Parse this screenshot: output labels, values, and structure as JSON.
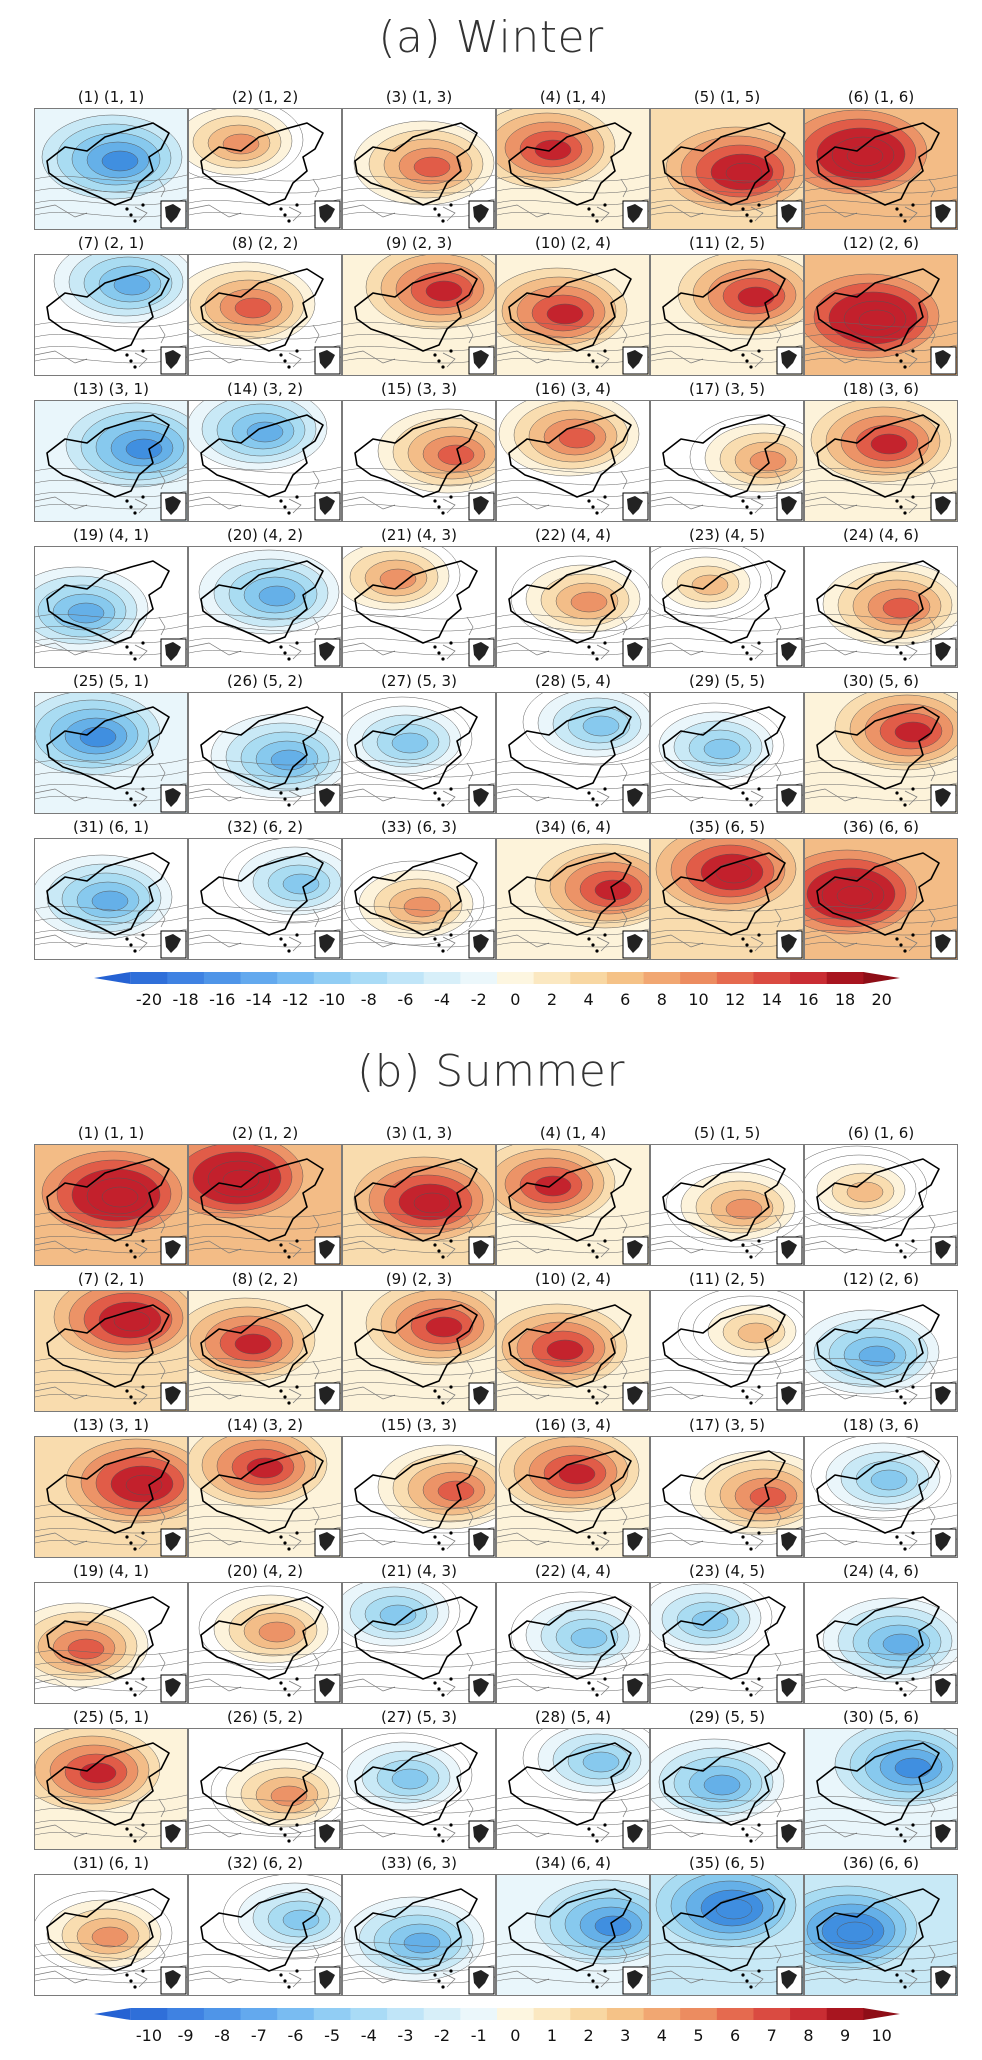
{
  "sections": [
    {
      "title": "(a) Winter",
      "panel_labels": [
        "(1) (1, 1)",
        "(2) (1, 2)",
        "(3) (1, 3)",
        "(4) (1, 4)",
        "(5) (1, 5)",
        "(6) (1, 6)",
        "(7) (2, 1)",
        "(8) (2, 2)",
        "(9) (2, 3)",
        "(10) (2, 4)",
        "(11) (2, 5)",
        "(12) (2, 6)",
        "(13) (3, 1)",
        "(14) (3, 2)",
        "(15) (3, 3)",
        "(16) (3, 4)",
        "(17) (3, 5)",
        "(18) (3, 6)",
        "(19) (4, 1)",
        "(20) (4, 2)",
        "(21) (4, 3)",
        "(22) (4, 4)",
        "(23) (4, 5)",
        "(24) (4, 6)",
        "(25) (5, 1)",
        "(26) (5, 2)",
        "(27) (5, 3)",
        "(28) (5, 4)",
        "(29) (5, 5)",
        "(30) (5, 6)",
        "(31) (6, 1)",
        "(32) (6, 2)",
        "(33) (6, 3)",
        "(34) (6, 4)",
        "(35) (6, 5)",
        "(36) (6, 6)"
      ],
      "colorbar_labels": [
        "-20",
        "-18",
        "-16",
        "-14",
        "-12",
        "-10",
        "-8",
        "-6",
        "-4",
        "-2",
        "0",
        "2",
        "4",
        "6",
        "8",
        "10",
        "12",
        "14",
        "16",
        "18",
        "20"
      ],
      "panel_tone": [
        -3,
        1,
        2,
        3,
        4,
        5,
        -2,
        2,
        3,
        3,
        3,
        5,
        -3,
        -2,
        2,
        2,
        1,
        3,
        -2,
        -2,
        1,
        1,
        0,
        2,
        -3,
        -2,
        -1,
        -1,
        -1,
        3,
        -2,
        -1,
        1,
        3,
        4,
        5
      ]
    },
    {
      "title": "(b) Summer",
      "panel_labels": [
        "(1) (1, 1)",
        "(2) (1, 2)",
        "(3) (1, 3)",
        "(4) (1, 4)",
        "(5) (1, 5)",
        "(6) (1, 6)",
        "(7) (2, 1)",
        "(8) (2, 2)",
        "(9) (2, 3)",
        "(10) (2, 4)",
        "(11) (2, 5)",
        "(12) (2, 6)",
        "(13) (3, 1)",
        "(14) (3, 2)",
        "(15) (3, 3)",
        "(16) (3, 4)",
        "(17) (3, 5)",
        "(18) (3, 6)",
        "(19) (4, 1)",
        "(20) (4, 2)",
        "(21) (4, 3)",
        "(22) (4, 4)",
        "(23) (4, 5)",
        "(24) (4, 6)",
        "(25) (5, 1)",
        "(26) (5, 2)",
        "(27) (5, 3)",
        "(28) (5, 4)",
        "(29) (5, 5)",
        "(30) (5, 6)",
        "(31) (6, 1)",
        "(32) (6, 2)",
        "(33) (6, 3)",
        "(34) (6, 4)",
        "(35) (6, 5)",
        "(36) (6, 6)"
      ],
      "colorbar_labels": [
        "-10",
        "-9",
        "-8",
        "-7",
        "-6",
        "-5",
        "-4",
        "-3",
        "-2",
        "-1",
        "0",
        "1",
        "2",
        "3",
        "4",
        "5",
        "6",
        "7",
        "8",
        "9",
        "10"
      ],
      "panel_tone": [
        5,
        5,
        4,
        3,
        1,
        0,
        4,
        3,
        3,
        3,
        0,
        -2,
        4,
        3,
        2,
        3,
        2,
        -1,
        2,
        1,
        -1,
        -1,
        -1,
        -2,
        3,
        1,
        -1,
        -1,
        -2,
        -3,
        1,
        -1,
        -2,
        -3,
        -4,
        -4
      ]
    }
  ],
  "colors": {
    "negative_ramp": [
      "#ffffff",
      "#e9f6fb",
      "#c8e9f6",
      "#a8dcf2",
      "#86c9ee",
      "#64afe8",
      "#3f8ee0"
    ],
    "positive_ramp": [
      "#ffffff",
      "#fdf3da",
      "#f9dcae",
      "#f3bc86",
      "#ec9166",
      "#e15a47",
      "#c3202c"
    ],
    "colorbar_neg": [
      "#2f6fd9",
      "#3f82e2",
      "#4f95e8",
      "#63a9ee",
      "#79bcf2",
      "#91cdf4",
      "#a9dbf6",
      "#c0e5f8",
      "#d7eff9",
      "#ebf7fb"
    ],
    "colorbar_pos": [
      "#fdf6e0",
      "#fbe8c1",
      "#f8d7a2",
      "#f5c287",
      "#f1a772",
      "#ec8c60",
      "#e56a4f",
      "#da4b41",
      "#c92d33",
      "#a8151f"
    ]
  }
}
